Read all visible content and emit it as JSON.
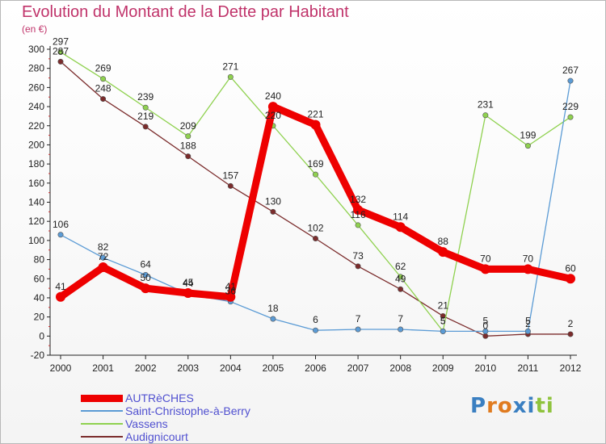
{
  "header": {
    "title": "Evolution du Montant de la Dette par Habitant",
    "unit": "(en €)"
  },
  "logo": "Proxiti",
  "chart_data": {
    "type": "line",
    "title": "Evolution du Montant de la Dette par Habitant",
    "ylabel": "(en €)",
    "xlabel": "",
    "ylim": [
      -20,
      300
    ],
    "yticks": [
      -20,
      0,
      20,
      40,
      60,
      80,
      100,
      120,
      140,
      160,
      180,
      200,
      220,
      240,
      260,
      280,
      300
    ],
    "x": [
      "2000",
      "2001",
      "2002",
      "2003",
      "2004",
      "2005",
      "2006",
      "2007",
      "2008",
      "2009",
      "2010",
      "2011",
      "2012"
    ],
    "grid": false,
    "legend_position": "bottom-left",
    "series": [
      {
        "name": "AUTRèCHES",
        "color": "#ee0000",
        "values": [
          41,
          72,
          50,
          45,
          41,
          240,
          221,
          132,
          114,
          88,
          70,
          70,
          60
        ]
      },
      {
        "name": "Saint-Christophe-à-Berry",
        "color": "#5b9bd5",
        "values": [
          106,
          82,
          64,
          44,
          36,
          18,
          6,
          7,
          7,
          5,
          5,
          5,
          267
        ]
      },
      {
        "name": "Vassens",
        "color": "#8fd14f",
        "values": [
          297,
          269,
          239,
          209,
          271,
          220,
          169,
          116,
          62,
          5,
          231,
          199,
          229
        ]
      },
      {
        "name": "Audignicourt",
        "color": "#7b2c2c",
        "values": [
          287,
          248,
          219,
          188,
          157,
          130,
          102,
          73,
          49,
          21,
          0,
          2,
          2
        ]
      }
    ],
    "data_labels": [
      [
        "41",
        "72",
        "50",
        "45",
        "41",
        "240",
        "221",
        "132",
        "114",
        "88",
        "70",
        "70",
        "60"
      ],
      [
        "106",
        "82",
        "64",
        "44",
        "36",
        "18",
        "6",
        "7",
        "7",
        "5",
        "5",
        "5",
        "267"
      ],
      [
        "297",
        "269",
        "239",
        "209",
        "271",
        "220",
        "169",
        "116",
        "62",
        "5",
        "231",
        "199",
        "229"
      ],
      [
        "287",
        "248",
        "219",
        "188",
        "157",
        "130",
        "102",
        "73",
        "49",
        "21",
        "0",
        "2",
        "2"
      ]
    ]
  }
}
